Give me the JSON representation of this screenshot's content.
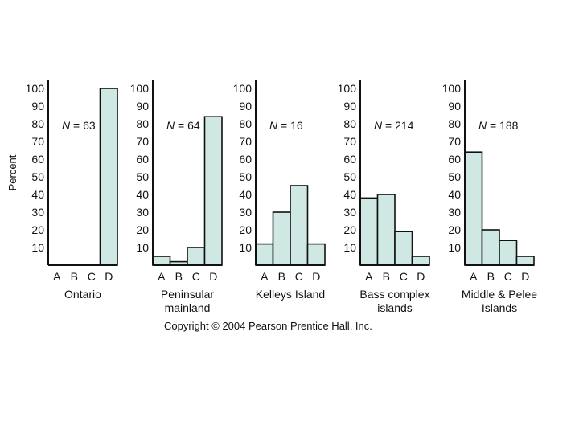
{
  "chart_data": {
    "type": "bar",
    "ylabel": "Percent",
    "categories": [
      "A",
      "B",
      "C",
      "D"
    ],
    "yticks": [
      10,
      20,
      30,
      40,
      50,
      60,
      70,
      80,
      90,
      100
    ],
    "ylim": [
      0,
      100
    ],
    "panels": [
      {
        "title": [
          "Ontario"
        ],
        "n_prefix": "N",
        "n_text": " = 63",
        "values": [
          0,
          0,
          0,
          100
        ]
      },
      {
        "title": [
          "Peninsular",
          "mainland"
        ],
        "n_prefix": "N",
        "n_text": " = 64",
        "values": [
          5,
          2,
          10,
          84
        ]
      },
      {
        "title": [
          "Kelleys Island"
        ],
        "n_prefix": "N",
        "n_text": " = 16",
        "values": [
          12,
          30,
          45,
          12
        ]
      },
      {
        "title": [
          "Bass complex",
          "islands"
        ],
        "n_prefix": "N",
        "n_text": " =  214",
        "values": [
          38,
          40,
          19,
          5
        ]
      },
      {
        "title": [
          "Middle & Pelee",
          "Islands"
        ],
        "n_prefix": "N",
        "n_text": " = 188",
        "values": [
          64,
          20,
          14,
          5
        ]
      }
    ]
  },
  "copyright": "Copyright © 2004 Pearson Prentice Hall, Inc."
}
